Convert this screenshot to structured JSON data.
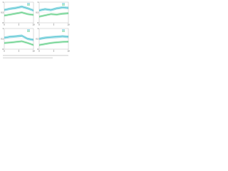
{
  "chart_data": [
    {
      "type": "line",
      "x": [
        0,
        2,
        4,
        6,
        8,
        10
      ],
      "xlim": [
        0,
        10
      ],
      "xticks": [
        0,
        5,
        10
      ],
      "ylim": [
        0,
        1
      ],
      "yticks": [
        0,
        0.5,
        1
      ],
      "grid": true,
      "series": [
        {
          "color": "#2bb5c8",
          "values": [
            0.62,
            0.68,
            0.72,
            0.78,
            0.7,
            0.6
          ],
          "lower": [
            0.56,
            0.62,
            0.66,
            0.72,
            0.64,
            0.54
          ],
          "upper": [
            0.68,
            0.74,
            0.78,
            0.84,
            0.76,
            0.66
          ]
        },
        {
          "color": "#3cc46a",
          "values": [
            0.35,
            0.4,
            0.45,
            0.5,
            0.42,
            0.38
          ],
          "lower": [
            0.3,
            0.35,
            0.4,
            0.45,
            0.37,
            0.33
          ],
          "upper": [
            0.4,
            0.45,
            0.5,
            0.55,
            0.47,
            0.43
          ]
        }
      ]
    },
    {
      "type": "line",
      "x": [
        0,
        2,
        4,
        6,
        8,
        10
      ],
      "xlim": [
        0,
        10
      ],
      "xticks": [
        0,
        5,
        10
      ],
      "ylim": [
        0,
        1
      ],
      "yticks": [
        0,
        0.5,
        1
      ],
      "grid": true,
      "series": [
        {
          "color": "#2bb5c8",
          "values": [
            0.6,
            0.66,
            0.62,
            0.7,
            0.74,
            0.72
          ],
          "lower": [
            0.54,
            0.6,
            0.56,
            0.64,
            0.68,
            0.66
          ],
          "upper": [
            0.66,
            0.72,
            0.68,
            0.76,
            0.8,
            0.78
          ]
        },
        {
          "color": "#3cc46a",
          "values": [
            0.3,
            0.36,
            0.42,
            0.4,
            0.44,
            0.46
          ],
          "lower": [
            0.25,
            0.31,
            0.37,
            0.35,
            0.39,
            0.41
          ],
          "upper": [
            0.35,
            0.41,
            0.47,
            0.45,
            0.49,
            0.51
          ]
        }
      ]
    },
    {
      "type": "line",
      "x": [
        0,
        2,
        4,
        6,
        8,
        10
      ],
      "xlim": [
        0,
        10
      ],
      "xticks": [
        0,
        5,
        10
      ],
      "ylim": [
        0,
        1
      ],
      "yticks": [
        0,
        0.5,
        1
      ],
      "grid": true,
      "series": [
        {
          "color": "#2bb5c8",
          "values": [
            0.55,
            0.6,
            0.62,
            0.65,
            0.5,
            0.45
          ],
          "lower": [
            0.49,
            0.54,
            0.56,
            0.59,
            0.44,
            0.39
          ],
          "upper": [
            0.61,
            0.66,
            0.68,
            0.71,
            0.56,
            0.51
          ]
        },
        {
          "color": "#3cc46a",
          "values": [
            0.3,
            0.32,
            0.35,
            0.38,
            0.3,
            0.2
          ],
          "lower": [
            0.25,
            0.27,
            0.3,
            0.33,
            0.25,
            0.15
          ],
          "upper": [
            0.35,
            0.37,
            0.4,
            0.43,
            0.35,
            0.25
          ]
        }
      ]
    },
    {
      "type": "line",
      "x": [
        0,
        2,
        4,
        6,
        8,
        10
      ],
      "xlim": [
        0,
        10
      ],
      "xticks": [
        0,
        5,
        10
      ],
      "ylim": [
        0,
        1
      ],
      "yticks": [
        0,
        0.5,
        1
      ],
      "grid": true,
      "series": [
        {
          "color": "#2bb5c8",
          "values": [
            0.5,
            0.55,
            0.58,
            0.6,
            0.62,
            0.6
          ],
          "lower": [
            0.44,
            0.49,
            0.52,
            0.54,
            0.56,
            0.54
          ],
          "upper": [
            0.56,
            0.61,
            0.64,
            0.66,
            0.68,
            0.66
          ]
        },
        {
          "color": "#3cc46a",
          "values": [
            0.2,
            0.25,
            0.3,
            0.33,
            0.35,
            0.36
          ],
          "lower": [
            0.15,
            0.2,
            0.25,
            0.28,
            0.3,
            0.31
          ],
          "upper": [
            0.25,
            0.3,
            0.35,
            0.38,
            0.4,
            0.41
          ]
        }
      ]
    }
  ]
}
